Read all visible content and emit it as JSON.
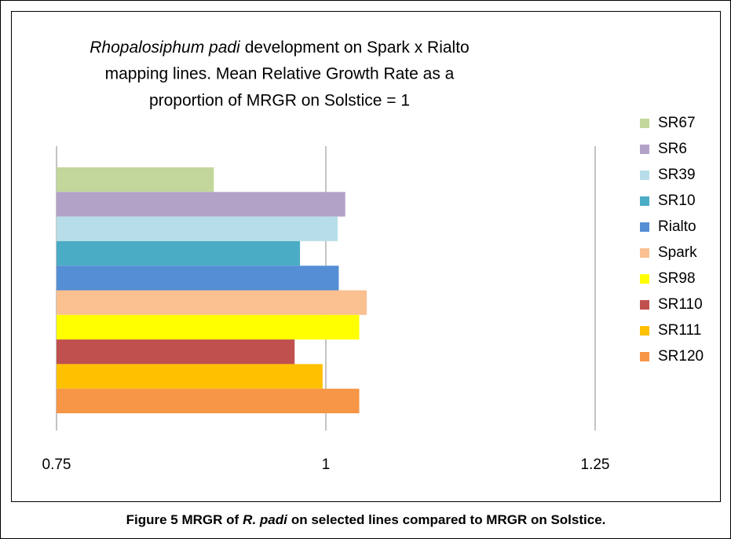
{
  "chart_data": {
    "type": "hbar",
    "title": [
      "Rhopalosiphum padi",
      "development on Spark x Rialto",
      "mapping lines. Mean Relative Growth Rate as a",
      "proportion of MRGR on Solstice = 1"
    ],
    "categories": [
      "SR67",
      "SR6",
      "SR39",
      "SR10",
      "Rialto",
      "Spark",
      "SR98",
      "SR110",
      "SR111",
      "SR120"
    ],
    "values": [
      0.896,
      1.018,
      1.011,
      0.976,
      1.012,
      1.038,
      1.031,
      0.971,
      0.997,
      1.031
    ],
    "colors": [
      "#c3d69b",
      "#b3a2c7",
      "#b7dee8",
      "#4bacc6",
      "#558ed5",
      "#fac090",
      "#ffff00",
      "#c0504d",
      "#ffc000",
      "#f79646"
    ],
    "xlim": [
      0.75,
      1.25
    ],
    "xticks": [
      0.75,
      1,
      1.25
    ],
    "grid": true,
    "legend": "right"
  },
  "caption": [
    "Figure 5 MRGR of",
    "R. padi",
    "on selected lines compared to MRGR on Solstice."
  ]
}
